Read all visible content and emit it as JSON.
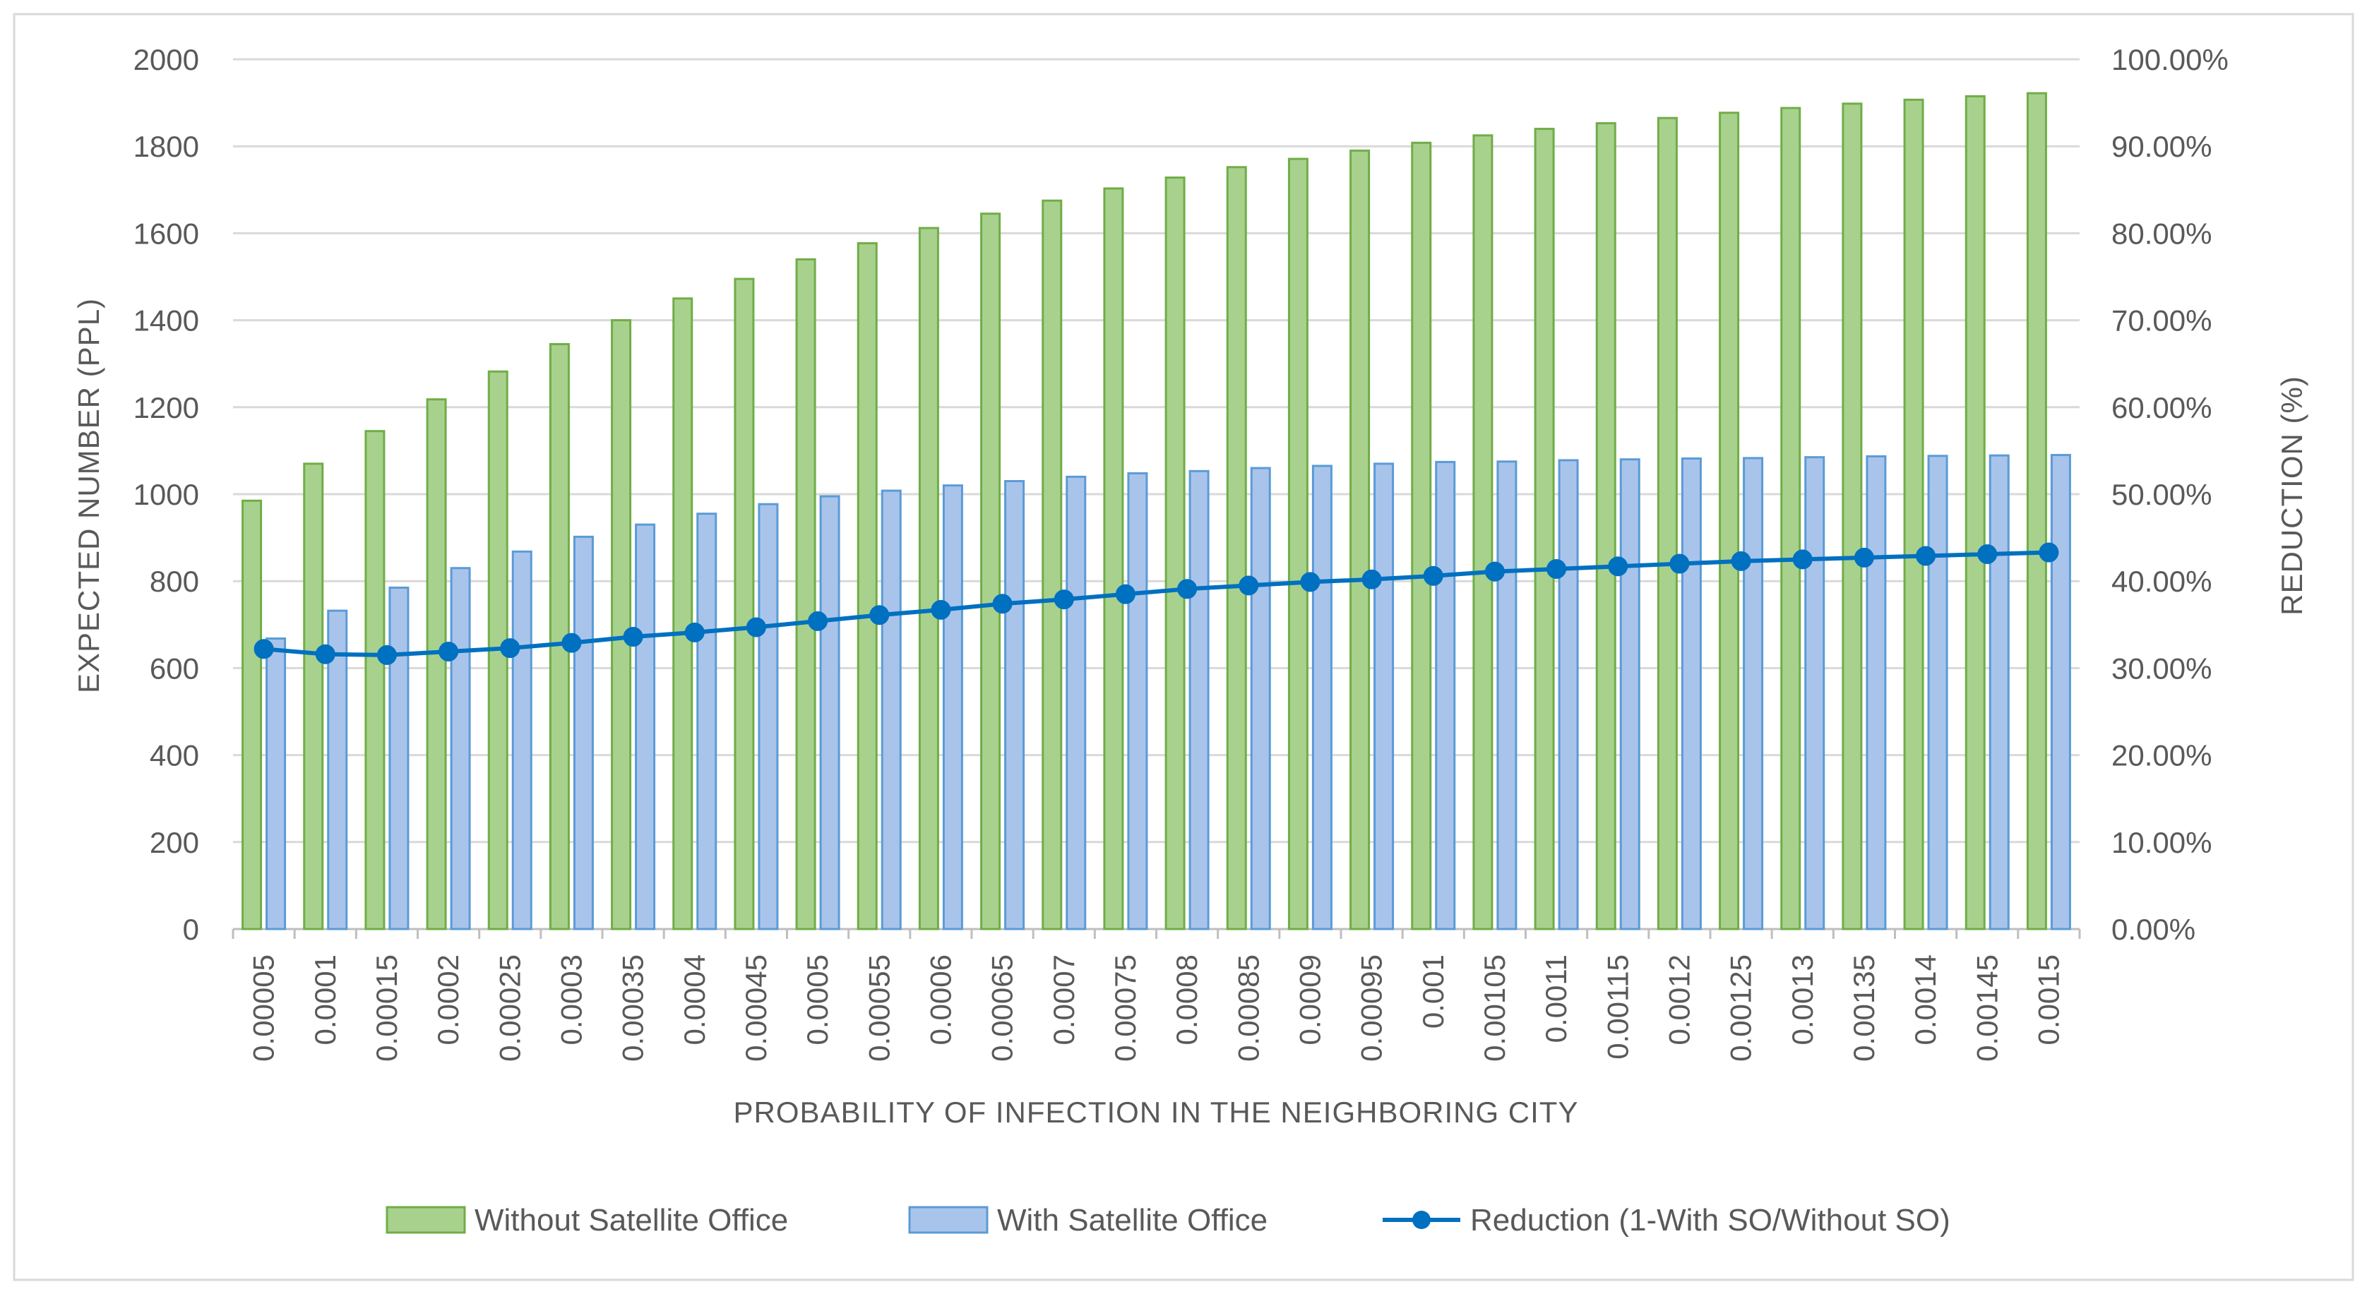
{
  "chart_data": {
    "type": "bar",
    "title": "",
    "xlabel": "PROBABILITY OF INFECTION IN THE NEIGHBORING CITY",
    "ylabel": "EXPECTED NUMBER (PPL)",
    "y2label": "REDUCTION (%)",
    "ylim": [
      0,
      2000
    ],
    "y2lim": [
      0,
      100
    ],
    "yticks": [
      "0",
      "200",
      "400",
      "600",
      "800",
      "1000",
      "1200",
      "1400",
      "1600",
      "1800",
      "2000"
    ],
    "y2ticks": [
      "0.00%",
      "10.00%",
      "20.00%",
      "30.00%",
      "40.00%",
      "50.00%",
      "60.00%",
      "70.00%",
      "80.00%",
      "90.00%",
      "100.00%"
    ],
    "grid": true,
    "legend_position": "bottom",
    "categories": [
      "0.00005",
      "0.0001",
      "0.00015",
      "0.0002",
      "0.00025",
      "0.0003",
      "0.00035",
      "0.0004",
      "0.00045",
      "0.0005",
      "0.00055",
      "0.0006",
      "0.00065",
      "0.0007",
      "0.00075",
      "0.0008",
      "0.00085",
      "0.0009",
      "0.00095",
      "0.001",
      "0.00105",
      "0.0011",
      "0.00115",
      "0.0012",
      "0.00125",
      "0.0013",
      "0.00135",
      "0.0014",
      "0.00145",
      "0.0015"
    ],
    "series": [
      {
        "name": "Without Satellite Office",
        "type": "bar",
        "axis": "left",
        "color": "#a9d18e",
        "stroke": "#70ad47",
        "values": [
          985,
          1070,
          1145,
          1218,
          1282,
          1345,
          1400,
          1450,
          1495,
          1540,
          1577,
          1612,
          1645,
          1675,
          1703,
          1728,
          1752,
          1771,
          1790,
          1808,
          1825,
          1840,
          1853,
          1865,
          1877,
          1888,
          1898,
          1907,
          1915,
          1922
        ]
      },
      {
        "name": "With Satellite Office",
        "type": "bar",
        "axis": "left",
        "color": "#a9c4eb",
        "stroke": "#5b9bd5",
        "values": [
          668,
          732,
          785,
          830,
          868,
          902,
          930,
          955,
          977,
          995,
          1008,
          1020,
          1030,
          1040,
          1048,
          1053,
          1060,
          1065,
          1070,
          1074,
          1075,
          1078,
          1080,
          1082,
          1083,
          1085,
          1087,
          1088,
          1089,
          1090
        ]
      },
      {
        "name": "Reduction (1-With SO/Without SO)",
        "type": "line",
        "axis": "right",
        "color": "#0070c0",
        "values": [
          32.2,
          31.6,
          31.5,
          31.9,
          32.3,
          32.9,
          33.6,
          34.1,
          34.7,
          35.4,
          36.1,
          36.7,
          37.4,
          37.9,
          38.5,
          39.1,
          39.5,
          39.9,
          40.2,
          40.6,
          41.1,
          41.4,
          41.7,
          42.0,
          42.3,
          42.5,
          42.7,
          42.9,
          43.1,
          43.3
        ]
      }
    ]
  }
}
